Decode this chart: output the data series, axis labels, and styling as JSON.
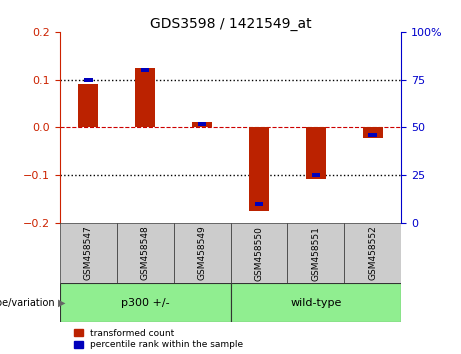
{
  "title": "GDS3598 / 1421549_at",
  "samples": [
    "GSM458547",
    "GSM458548",
    "GSM458549",
    "GSM458550",
    "GSM458551",
    "GSM458552"
  ],
  "red_values": [
    0.09,
    0.125,
    0.012,
    -0.175,
    -0.107,
    -0.022
  ],
  "blue_percentiles": [
    75,
    80,
    52,
    10,
    25,
    46
  ],
  "groups": [
    {
      "label": "p300 +/-",
      "indices": [
        0,
        1,
        2
      ],
      "color": "#90EE90"
    },
    {
      "label": "wild-type",
      "indices": [
        3,
        4,
        5
      ],
      "color": "#90EE90"
    }
  ],
  "ylim_left": [
    -0.2,
    0.2
  ],
  "ylim_right": [
    0,
    100
  ],
  "yticks_left": [
    -0.2,
    -0.1,
    0,
    0.1,
    0.2
  ],
  "yticks_right": [
    0,
    25,
    50,
    75,
    100
  ],
  "ytick_labels_right": [
    "0",
    "25",
    "50",
    "75",
    "100%"
  ],
  "red_color": "#bb2200",
  "blue_color": "#0000bb",
  "red_bar_width": 0.35,
  "blue_bar_width": 0.15,
  "hline_0_color": "#cc0000",
  "hline_dotted_color": "black",
  "legend_red": "transformed count",
  "legend_blue": "percentile rank within the sample",
  "group_label": "genotype/variation",
  "left_tick_color": "#cc2200",
  "right_tick_color": "#0000cc",
  "sample_box_color": "#cccccc",
  "plot_bg_color": "#ffffff"
}
